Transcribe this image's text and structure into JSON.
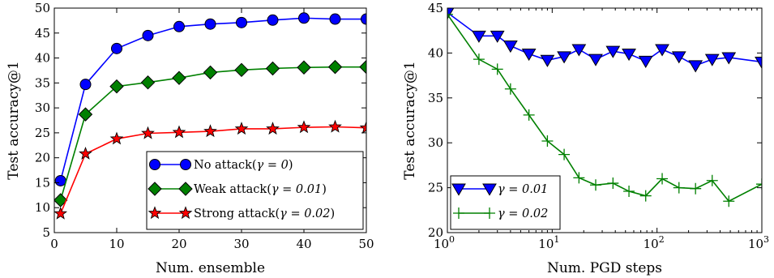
{
  "chart_data": [
    {
      "type": "line",
      "xlabel": "Num. ensemble",
      "ylabel": "Test accuracy@1",
      "xscale": "linear",
      "xlim": [
        0,
        50
      ],
      "ylim": [
        5,
        50
      ],
      "xticks": [
        0,
        10,
        20,
        30,
        40,
        50
      ],
      "yticks": [
        5,
        10,
        15,
        20,
        25,
        30,
        35,
        40,
        45,
        50
      ],
      "xticklabels": [
        "0",
        "10",
        "20",
        "30",
        "40",
        "50"
      ],
      "yticklabels": [
        "5",
        "10",
        "15",
        "20",
        "25",
        "30",
        "35",
        "40",
        "45",
        "50"
      ],
      "grid": false,
      "legend_position": "bottom-right",
      "x": [
        1,
        5,
        10,
        15,
        20,
        25,
        30,
        35,
        40,
        45,
        50
      ],
      "series": [
        {
          "name": "No attack($\\gamma=0$)",
          "label_plain": "No attack(",
          "label_math": "γ = 0",
          "label_tail": ")",
          "color": "#0000ff",
          "marker": "circle",
          "values": [
            15.4,
            34.7,
            41.9,
            44.5,
            46.3,
            46.8,
            47.1,
            47.6,
            48.0,
            47.8,
            47.8
          ]
        },
        {
          "name": "Weak attack($\\gamma=0.01$)",
          "label_plain": "Weak attack(",
          "label_math": "γ = 0.01",
          "label_tail": ")",
          "color": "#008000",
          "marker": "diamond",
          "values": [
            11.5,
            28.7,
            34.3,
            35.1,
            36.0,
            37.1,
            37.6,
            37.9,
            38.1,
            38.2,
            38.2
          ]
        },
        {
          "name": "Strong attack($\\gamma=0.02$)",
          "label_plain": "Strong attack(",
          "label_math": "γ = 0.02",
          "label_tail": ")",
          "color": "#ff0000",
          "marker": "star",
          "values": [
            8.8,
            20.8,
            23.8,
            24.9,
            25.1,
            25.3,
            25.8,
            25.8,
            26.1,
            26.2,
            26.0
          ]
        }
      ]
    },
    {
      "type": "line",
      "xlabel": "Num. PGD steps",
      "ylabel": "Test accuracy@1",
      "xscale": "log",
      "xlim": [
        1,
        1000
      ],
      "ylim": [
        20,
        45
      ],
      "xticks": [
        1,
        10,
        100,
        1000
      ],
      "xticklabels": [
        {
          "base": "10",
          "exp": "0"
        },
        {
          "base": "10",
          "exp": "1"
        },
        {
          "base": "10",
          "exp": "2"
        },
        {
          "base": "10",
          "exp": "3"
        }
      ],
      "yticks": [
        20,
        25,
        30,
        35,
        40,
        45
      ],
      "yticklabels": [
        "20",
        "25",
        "30",
        "35",
        "40",
        "45"
      ],
      "grid": false,
      "legend_position": "bottom-left",
      "series": [
        {
          "name": "$\\gamma=0.01$",
          "label_math": "γ = 0.01",
          "color": "#0000ff",
          "marker": "triangle-down",
          "x": [
            1,
            2,
            3,
            4,
            6,
            9,
            13,
            18,
            26,
            38,
            54,
            78,
            112,
            162,
            233,
            336,
            484,
            1000
          ],
          "values": [
            44.5,
            41.9,
            41.9,
            40.8,
            39.9,
            39.2,
            39.6,
            40.4,
            39.3,
            40.2,
            39.9,
            39.1,
            40.4,
            39.6,
            38.6,
            39.3,
            39.5,
            39.0
          ]
        },
        {
          "name": "$\\gamma=0.02$",
          "label_math": "γ = 0.02",
          "color": "#008000",
          "marker": "plus",
          "x": [
            1,
            2,
            3,
            4,
            6,
            9,
            13,
            18,
            26,
            38,
            54,
            78,
            112,
            162,
            233,
            336,
            484,
            1000
          ],
          "values": [
            44.3,
            39.3,
            38.2,
            36.0,
            33.1,
            30.2,
            28.7,
            26.1,
            25.3,
            25.5,
            24.6,
            24.1,
            26.0,
            25.0,
            24.9,
            25.8,
            23.5,
            25.4
          ]
        }
      ]
    }
  ]
}
